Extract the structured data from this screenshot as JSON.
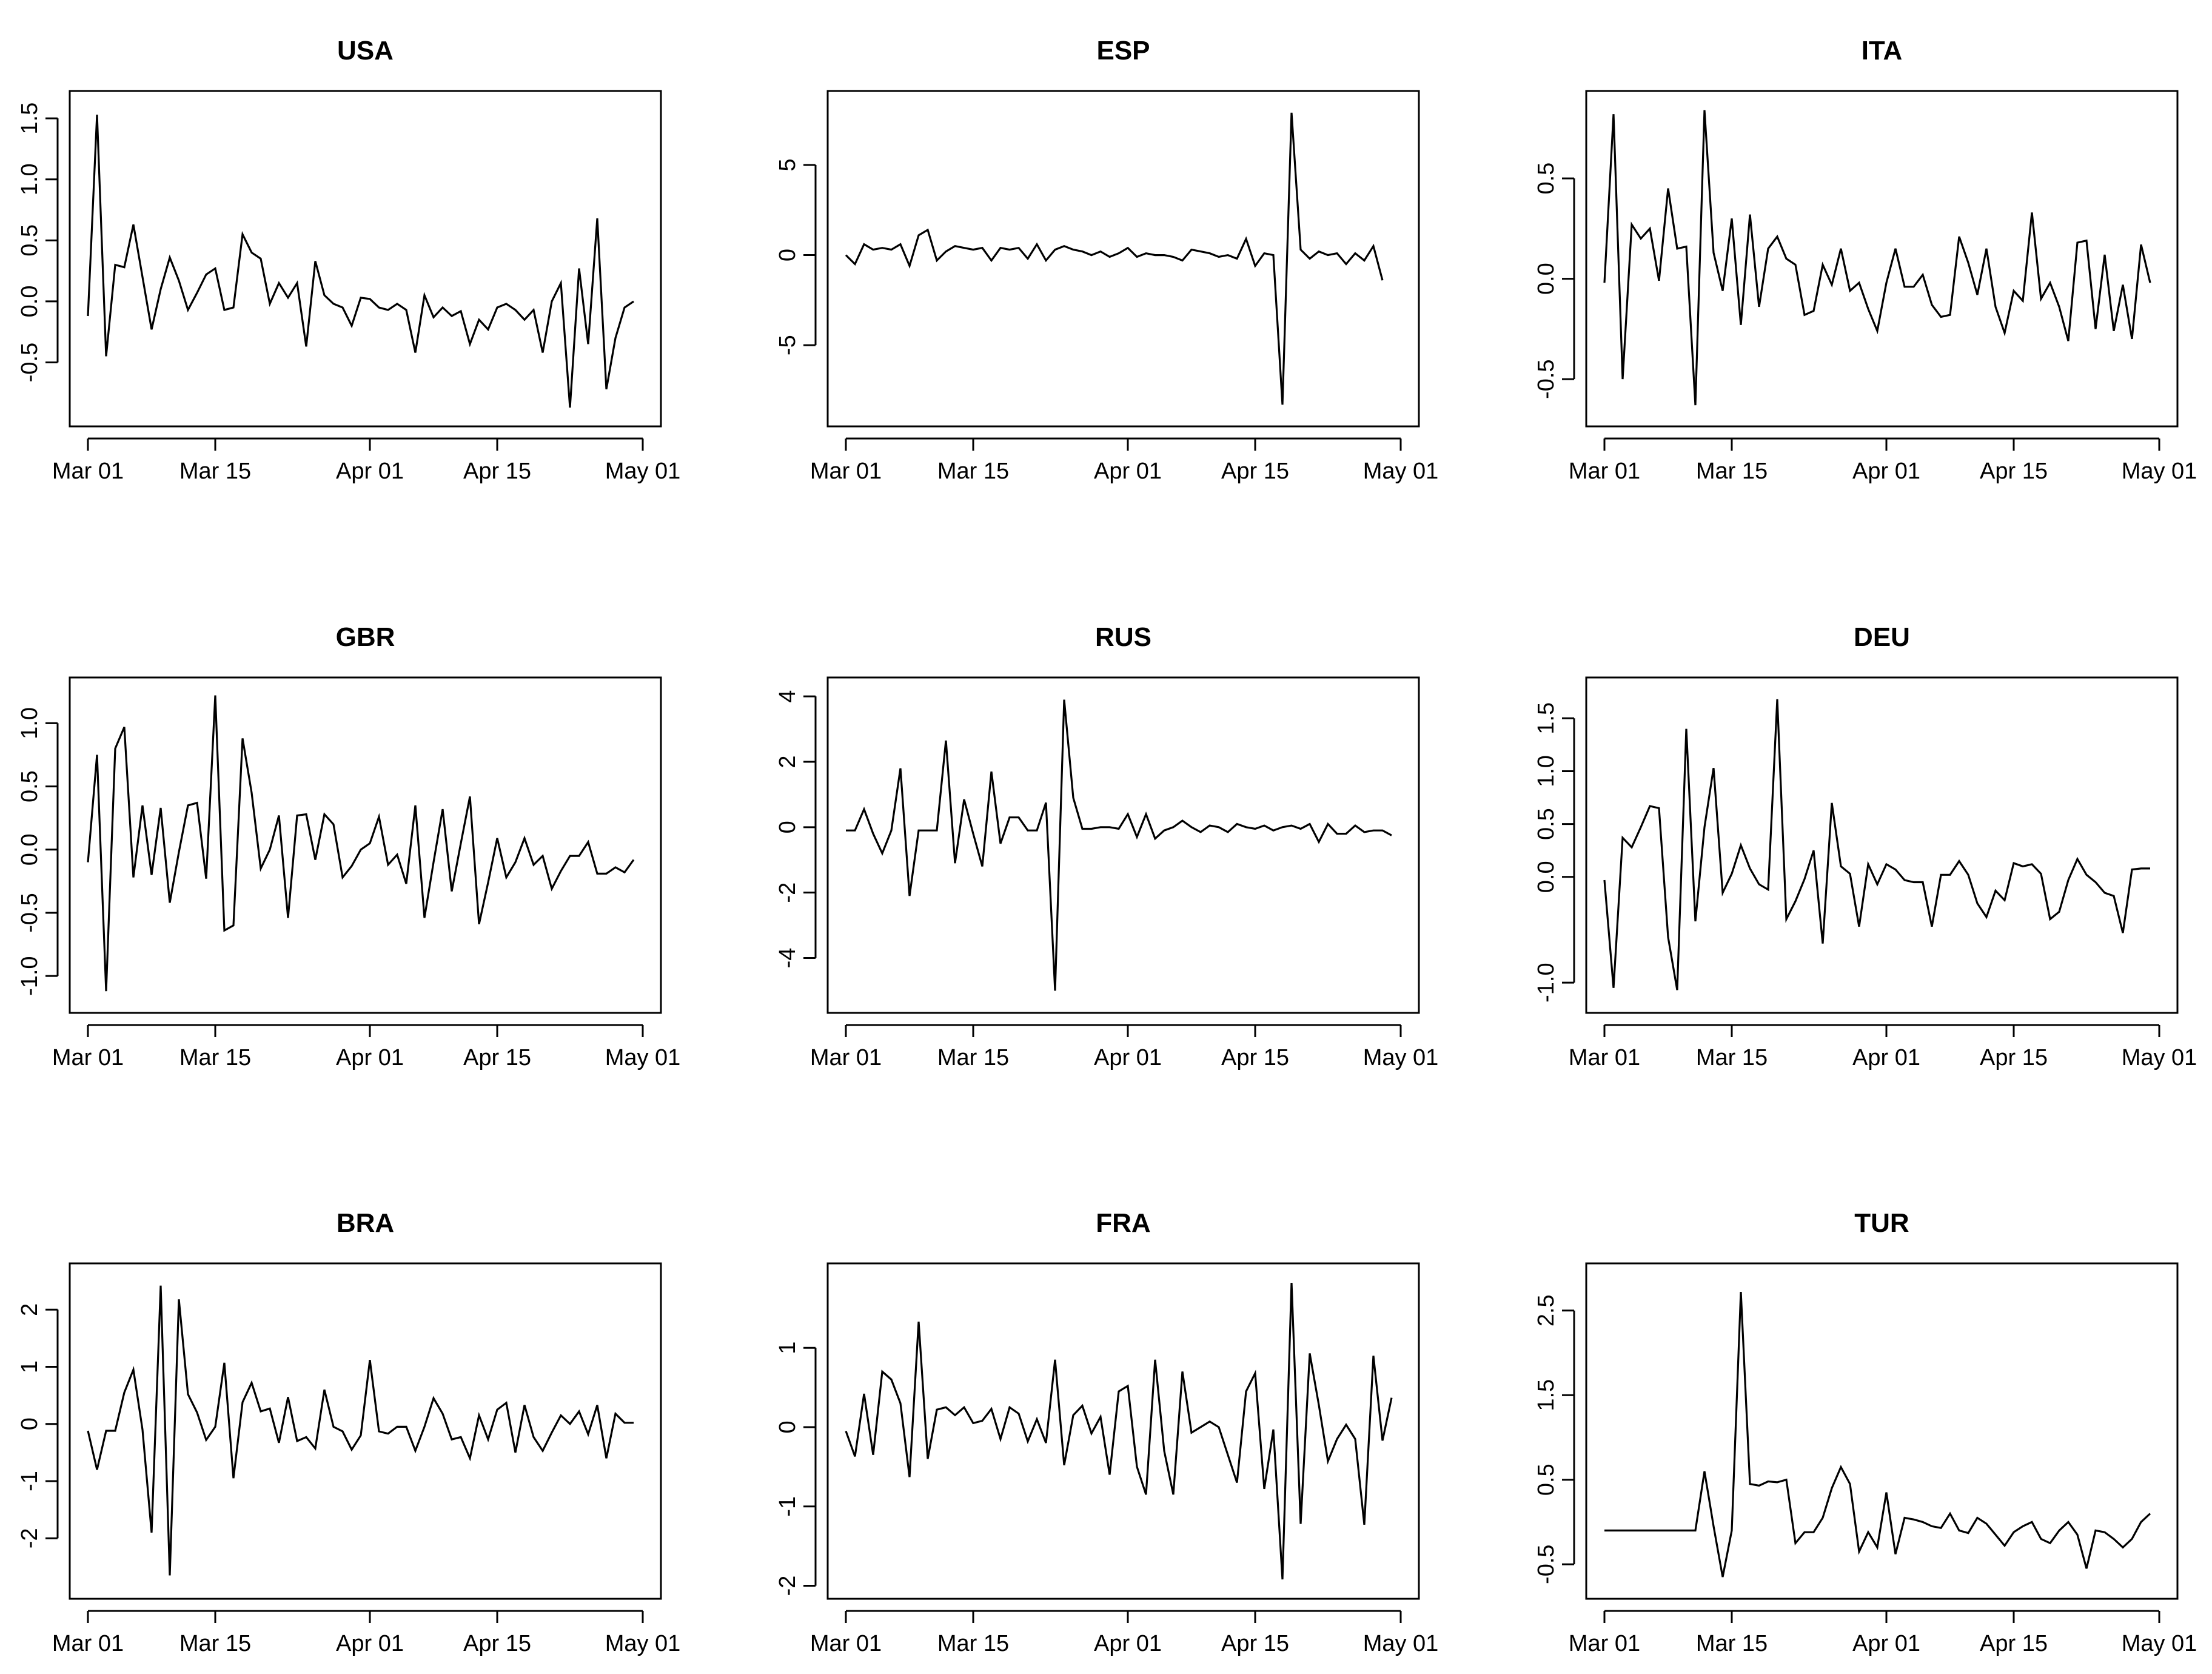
{
  "x_ticks": [
    "Mar 01",
    "Mar 15",
    "Apr 01",
    "Apr 15",
    "May 01"
  ],
  "x_tick_dates": [
    "2020-03-01",
    "2020-03-15",
    "2020-04-01",
    "2020-04-15",
    "2020-05-01"
  ],
  "line_color": "#000000",
  "chart_data": [
    {
      "type": "line",
      "title": "USA",
      "xlabel": "",
      "ylabel": "",
      "x_start": "2020-03-01",
      "x_end": "2020-04-30",
      "xlim": [
        "2020-03-01",
        "2020-05-01"
      ],
      "ylim": [
        -0.95,
        1.65
      ],
      "yticks": [
        -0.5,
        0.0,
        0.5,
        1.0,
        1.5
      ],
      "ytick_labels": [
        "-0.5",
        "0.0",
        "0.5",
        "1.0",
        "1.5"
      ],
      "values": [
        -0.12,
        1.53,
        -0.45,
        0.3,
        0.28,
        0.63,
        0.2,
        -0.23,
        0.1,
        0.36,
        0.17,
        -0.07,
        0.07,
        0.22,
        0.27,
        -0.07,
        -0.05,
        0.55,
        0.4,
        0.35,
        -0.02,
        0.15,
        0.03,
        0.15,
        -0.37,
        0.33,
        0.05,
        -0.02,
        -0.05,
        -0.2,
        0.03,
        0.02,
        -0.05,
        -0.07,
        -0.02,
        -0.07,
        -0.42,
        0.05,
        -0.13,
        -0.05,
        -0.12,
        -0.08,
        -0.35,
        -0.15,
        -0.23,
        -0.05,
        -0.02,
        -0.07,
        -0.15,
        -0.07,
        -0.42,
        0.0,
        0.15,
        -0.87,
        0.27,
        -0.35,
        0.68,
        -0.72,
        -0.3,
        -0.05,
        0.0
      ]
    },
    {
      "type": "line",
      "title": "ESP",
      "xlabel": "",
      "ylabel": "",
      "x_start": "2020-03-01",
      "x_end": "2020-04-30",
      "xlim": [
        "2020-03-01",
        "2020-05-01"
      ],
      "ylim": [
        -9.0,
        8.6
      ],
      "yticks": [
        -5,
        0,
        5
      ],
      "ytick_labels": [
        "-5",
        "0",
        "5"
      ],
      "values": [
        0.0,
        -0.5,
        0.6,
        0.3,
        0.4,
        0.3,
        0.6,
        -0.6,
        1.1,
        1.4,
        -0.3,
        0.2,
        0.5,
        0.4,
        0.3,
        0.4,
        -0.3,
        0.4,
        0.3,
        0.4,
        -0.2,
        0.6,
        -0.3,
        0.3,
        0.5,
        0.3,
        0.2,
        0.0,
        0.2,
        -0.1,
        0.1,
        0.4,
        -0.1,
        0.1,
        0.0,
        0.0,
        -0.1,
        -0.3,
        0.3,
        0.2,
        0.1,
        -0.1,
        0.0,
        -0.2,
        0.9,
        -0.6,
        0.1,
        0.0,
        -8.3,
        7.9,
        0.3,
        -0.2,
        0.2,
        0.0,
        0.1,
        -0.5,
        0.1,
        -0.3,
        0.5,
        -1.4
      ]
    },
    {
      "type": "line",
      "title": "ITA",
      "xlabel": "",
      "ylabel": "",
      "x_start": "2020-03-01",
      "x_end": "2020-04-30",
      "xlim": [
        "2020-03-01",
        "2020-05-01"
      ],
      "ylim": [
        -0.69,
        0.89
      ],
      "yticks": [
        -0.5,
        0.0,
        0.5
      ],
      "ytick_labels": [
        "-0.5",
        "0.0",
        "0.5"
      ],
      "values": [
        -0.02,
        0.82,
        -0.5,
        0.27,
        0.2,
        0.25,
        -0.01,
        0.45,
        0.15,
        0.16,
        -0.63,
        0.84,
        0.13,
        -0.06,
        0.3,
        -0.23,
        0.32,
        -0.14,
        0.15,
        0.21,
        0.1,
        0.07,
        -0.18,
        -0.16,
        0.07,
        -0.03,
        0.15,
        -0.06,
        -0.02,
        -0.15,
        -0.26,
        -0.02,
        0.15,
        -0.04,
        -0.04,
        0.02,
        -0.13,
        -0.19,
        -0.18,
        0.21,
        0.08,
        -0.08,
        0.15,
        -0.14,
        -0.27,
        -0.06,
        -0.11,
        0.33,
        -0.1,
        -0.02,
        -0.14,
        -0.31,
        0.18,
        0.19,
        -0.25,
        0.12,
        -0.26,
        -0.03,
        -0.3,
        0.17,
        -0.02
      ]
    },
    {
      "type": "line",
      "title": "GBR",
      "xlabel": "",
      "ylabel": "",
      "x_start": "2020-03-01",
      "x_end": "2020-04-30",
      "xlim": [
        "2020-03-01",
        "2020-05-01"
      ],
      "ylim": [
        -1.22,
        1.29
      ],
      "yticks": [
        -1.0,
        -0.5,
        0.0,
        0.5,
        1.0
      ],
      "ytick_labels": [
        "-1.0",
        "-0.5",
        "0.0",
        "0.5",
        "1.0"
      ],
      "values": [
        -0.1,
        0.75,
        -1.12,
        0.8,
        0.97,
        -0.22,
        0.35,
        -0.2,
        0.33,
        -0.42,
        -0.02,
        0.35,
        0.37,
        -0.23,
        1.22,
        -0.64,
        -0.6,
        0.88,
        0.45,
        -0.15,
        0.0,
        0.27,
        -0.54,
        0.27,
        0.28,
        -0.08,
        0.28,
        0.2,
        -0.22,
        -0.13,
        0.0,
        0.05,
        0.26,
        -0.12,
        -0.04,
        -0.27,
        0.35,
        -0.54,
        -0.1,
        0.32,
        -0.33,
        0.05,
        0.42,
        -0.59,
        -0.26,
        0.09,
        -0.22,
        -0.1,
        0.09,
        -0.12,
        -0.05,
        -0.31,
        -0.17,
        -0.05,
        -0.05,
        0.06,
        -0.19,
        -0.19,
        -0.14,
        -0.18,
        -0.08
      ]
    },
    {
      "type": "line",
      "title": "RUS",
      "xlabel": "",
      "ylabel": "",
      "x_start": "2020-03-01",
      "x_end": "2020-04-30",
      "xlim": [
        "2020-03-01",
        "2020-05-01"
      ],
      "ylim": [
        -5.4,
        4.3
      ],
      "yticks": [
        -4,
        -2,
        0,
        2,
        4
      ],
      "ytick_labels": [
        "-4",
        "-2",
        "0",
        "2",
        "4"
      ],
      "values": [
        -0.1,
        -0.1,
        0.55,
        -0.2,
        -0.8,
        -0.1,
        1.8,
        -2.1,
        -0.1,
        -0.1,
        -0.1,
        2.65,
        -1.1,
        0.85,
        -0.2,
        -1.2,
        1.7,
        -0.5,
        0.3,
        0.3,
        -0.1,
        -0.1,
        0.75,
        -5.0,
        3.9,
        0.9,
        -0.05,
        -0.05,
        0.0,
        0.0,
        -0.05,
        0.4,
        -0.3,
        0.4,
        -0.35,
        -0.1,
        0.0,
        0.2,
        0.0,
        -0.15,
        0.05,
        0.0,
        -0.15,
        0.1,
        0.0,
        -0.05,
        0.05,
        -0.1,
        0.0,
        0.05,
        -0.05,
        0.1,
        -0.45,
        0.1,
        -0.2,
        -0.2,
        0.05,
        -0.15,
        -0.1,
        -0.1,
        -0.25
      ]
    },
    {
      "type": "line",
      "title": "DEU",
      "xlabel": "",
      "ylabel": "",
      "x_start": "2020-03-01",
      "x_end": "2020-04-30",
      "xlim": [
        "2020-03-01",
        "2020-05-01"
      ],
      "ylim": [
        -1.2,
        1.8
      ],
      "yticks": [
        -1.0,
        0.0,
        0.5,
        1.0,
        1.5
      ],
      "ytick_labels": [
        "-1.0",
        "0.0",
        "0.5",
        "1.0",
        "1.5"
      ],
      "values": [
        -0.03,
        -1.05,
        0.37,
        0.28,
        0.47,
        0.67,
        0.65,
        -0.57,
        -1.07,
        1.4,
        -0.42,
        0.47,
        1.03,
        -0.15,
        0.03,
        0.3,
        0.08,
        -0.07,
        -0.12,
        1.68,
        -0.4,
        -0.23,
        -0.02,
        0.25,
        -0.63,
        0.7,
        0.1,
        0.03,
        -0.47,
        0.12,
        -0.07,
        0.12,
        0.07,
        -0.03,
        -0.05,
        -0.05,
        -0.47,
        0.02,
        0.02,
        0.15,
        0.02,
        -0.25,
        -0.38,
        -0.13,
        -0.22,
        0.13,
        0.1,
        0.12,
        0.03,
        -0.4,
        -0.33,
        -0.03,
        0.17,
        0.02,
        -0.05,
        -0.15,
        -0.18,
        -0.53,
        0.07,
        0.08,
        0.08
      ]
    },
    {
      "type": "line",
      "title": "BRA",
      "xlabel": "",
      "ylabel": "",
      "x_start": "2020-03-01",
      "x_end": "2020-04-30",
      "xlim": [
        "2020-03-01",
        "2020-05-01"
      ],
      "ylim": [
        -2.9,
        2.65
      ],
      "yticks": [
        -2,
        -1,
        0,
        1,
        2
      ],
      "ytick_labels": [
        "-2",
        "-1",
        "0",
        "1",
        "2"
      ],
      "values": [
        -0.12,
        -0.8,
        -0.12,
        -0.12,
        0.55,
        0.95,
        -0.1,
        -1.9,
        2.42,
        -2.65,
        2.18,
        0.52,
        0.2,
        -0.28,
        -0.05,
        1.07,
        -0.95,
        0.38,
        0.72,
        0.22,
        0.27,
        -0.33,
        0.47,
        -0.3,
        -0.23,
        -0.43,
        0.6,
        -0.05,
        -0.13,
        -0.45,
        -0.2,
        1.12,
        -0.13,
        -0.17,
        -0.05,
        -0.05,
        -0.47,
        -0.05,
        0.45,
        0.18,
        -0.27,
        -0.23,
        -0.6,
        0.15,
        -0.27,
        0.25,
        0.37,
        -0.5,
        0.33,
        -0.23,
        -0.47,
        -0.15,
        0.15,
        0.0,
        0.22,
        -0.18,
        0.33,
        -0.6,
        0.18,
        0.02,
        0.02
      ]
    },
    {
      "type": "line",
      "title": "FRA",
      "xlabel": "",
      "ylabel": "",
      "x_start": "2020-03-01",
      "x_end": "2020-04-30",
      "xlim": [
        "2020-03-01",
        "2020-05-01"
      ],
      "ylim": [
        -2.05,
        1.95
      ],
      "yticks": [
        -2,
        -1,
        0,
        1
      ],
      "ytick_labels": [
        "-2",
        "-1",
        "0",
        "1"
      ],
      "values": [
        -0.05,
        -0.37,
        0.42,
        -0.35,
        0.7,
        0.6,
        0.3,
        -0.63,
        1.33,
        -0.4,
        0.22,
        0.25,
        0.15,
        0.25,
        0.05,
        0.08,
        0.23,
        -0.15,
        0.25,
        0.17,
        -0.18,
        0.1,
        -0.2,
        0.85,
        -0.48,
        0.15,
        0.27,
        -0.08,
        0.13,
        -0.6,
        0.45,
        0.52,
        -0.5,
        -0.85,
        0.85,
        -0.3,
        -0.85,
        0.7,
        -0.07,
        0.0,
        0.07,
        0.0,
        -0.35,
        -0.7,
        0.45,
        0.68,
        -0.78,
        -0.03,
        -1.92,
        1.82,
        -1.22,
        0.93,
        0.28,
        -0.43,
        -0.15,
        0.03,
        -0.15,
        -1.23,
        0.9,
        -0.17,
        0.37
      ]
    },
    {
      "type": "line",
      "title": "TUR",
      "xlabel": "",
      "ylabel": "",
      "x_start": "2020-03-01",
      "x_end": "2020-04-30",
      "xlim": [
        "2020-03-01",
        "2020-05-01"
      ],
      "ylim": [
        -0.8,
        2.95
      ],
      "yticks": [
        -0.5,
        0.5,
        1.5,
        2.5
      ],
      "ytick_labels": [
        "-0.5",
        "0.5",
        "1.5",
        "2.5"
      ],
      "values": [
        -0.1,
        -0.1,
        -0.1,
        -0.1,
        -0.1,
        -0.1,
        -0.1,
        -0.1,
        -0.1,
        -0.1,
        -0.1,
        0.6,
        -0.05,
        -0.65,
        -0.1,
        2.72,
        0.45,
        0.43,
        0.48,
        0.47,
        0.5,
        -0.25,
        -0.12,
        -0.12,
        0.05,
        0.4,
        0.65,
        0.45,
        -0.35,
        -0.12,
        -0.3,
        0.35,
        -0.38,
        0.05,
        0.03,
        0.0,
        -0.05,
        -0.07,
        0.1,
        -0.1,
        -0.13,
        0.05,
        -0.02,
        -0.15,
        -0.28,
        -0.12,
        -0.05,
        0.0,
        -0.2,
        -0.25,
        -0.1,
        0.0,
        -0.15,
        -0.55,
        -0.1,
        -0.12,
        -0.2,
        -0.3,
        -0.2,
        0.0,
        0.1
      ]
    }
  ]
}
